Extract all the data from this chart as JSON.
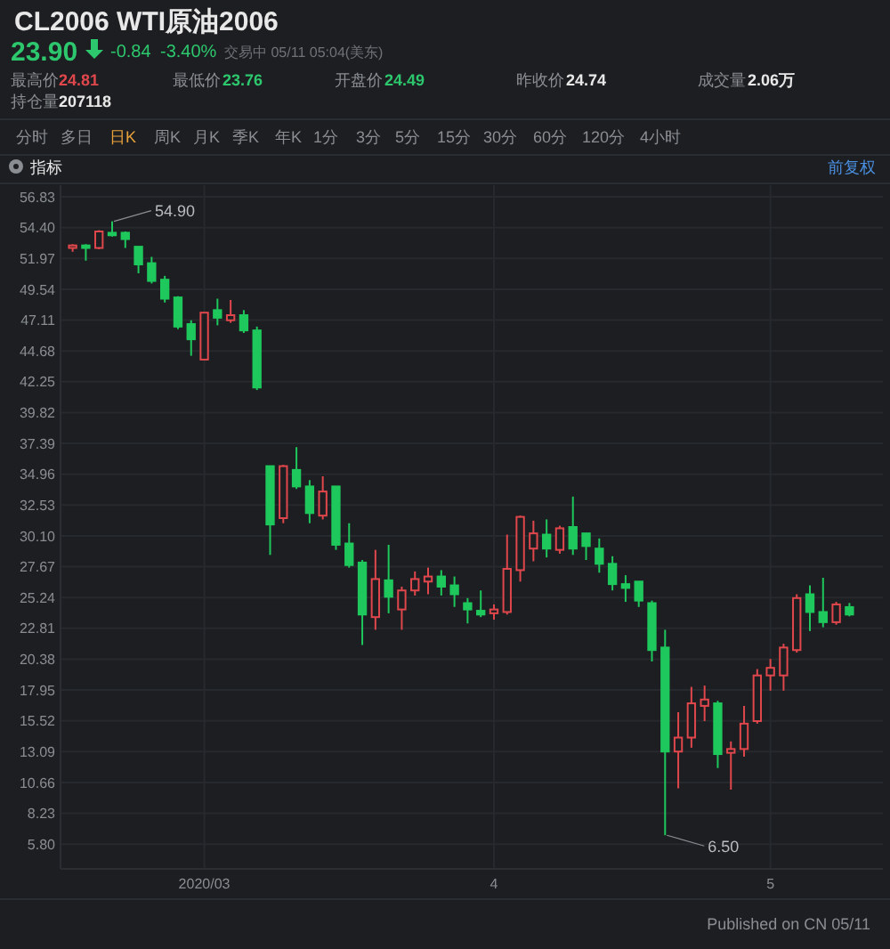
{
  "chart_data": {
    "type": "candlestick",
    "title": "CL2006 WTI原油2006",
    "subtitle": "23.90",
    "annotations": [
      "-0.84",
      "-3.40%",
      "交易中 05/11 05:04(美东)",
      "最高价",
      "24.81",
      "最低价",
      "23.76",
      "开盘价",
      "24.49",
      "昨收价",
      "24.74",
      "成交量",
      "2.06万",
      "持仓量",
      "207118",
      "分时",
      "多日",
      "日K",
      "周K",
      "月K",
      "季K",
      "年K",
      "1分",
      "3分",
      "5分",
      "15分",
      "30分",
      "60分",
      "120分",
      "4小时",
      "指标",
      "前复权",
      "Published on CN 05/11",
      "54.90",
      "6.50"
    ],
    "categories": [
      null,
      null,
      null,
      null,
      null,
      null,
      null,
      null,
      null,
      null,
      "2020/03",
      null,
      null,
      null,
      null,
      null,
      null,
      null,
      null,
      null,
      null,
      null,
      null,
      null,
      null,
      null,
      null,
      null,
      null,
      null,
      null,
      null,
      "4",
      null,
      null,
      null,
      null,
      null,
      null,
      null,
      null,
      null,
      null,
      null,
      null,
      null,
      null,
      null,
      null,
      null,
      null,
      null,
      null,
      "5",
      null,
      null,
      null,
      null,
      null,
      null
    ],
    "ohlc": [
      [
        52.8,
        53.1,
        52.5,
        53.0
      ],
      [
        53.0,
        53.1,
        51.8,
        52.8
      ],
      [
        52.8,
        54.2,
        52.7,
        54.1
      ],
      [
        54.0,
        54.9,
        53.7,
        53.8
      ],
      [
        54.0,
        54.1,
        52.8,
        53.5
      ],
      [
        52.9,
        52.9,
        50.8,
        51.5
      ],
      [
        51.6,
        52.1,
        50.0,
        50.2
      ],
      [
        50.3,
        50.6,
        48.5,
        48.8
      ],
      [
        48.9,
        49.0,
        46.4,
        46.6
      ],
      [
        46.8,
        47.1,
        44.3,
        45.6
      ],
      [
        44.0,
        47.7,
        44.0,
        47.7
      ],
      [
        47.9,
        48.8,
        46.7,
        47.3
      ],
      [
        47.1,
        48.7,
        46.9,
        47.5
      ],
      [
        47.5,
        47.9,
        46.1,
        46.3
      ],
      [
        46.3,
        46.6,
        41.6,
        41.8
      ],
      [
        35.6,
        35.6,
        28.6,
        31.0
      ],
      [
        31.5,
        35.7,
        31.1,
        35.6
      ],
      [
        35.3,
        37.1,
        33.8,
        34.0
      ],
      [
        34.0,
        34.5,
        31.1,
        31.9
      ],
      [
        31.7,
        34.8,
        31.4,
        33.6
      ],
      [
        34.0,
        34.0,
        29.0,
        29.4
      ],
      [
        29.5,
        31.1,
        27.6,
        27.8
      ],
      [
        28.0,
        28.2,
        21.5,
        23.9
      ],
      [
        23.7,
        29.0,
        22.7,
        26.7
      ],
      [
        26.6,
        29.4,
        24.0,
        25.3
      ],
      [
        24.3,
        26.1,
        22.7,
        25.8
      ],
      [
        25.8,
        27.3,
        25.4,
        26.7
      ],
      [
        26.5,
        27.6,
        25.5,
        26.9
      ],
      [
        26.9,
        27.4,
        25.4,
        26.1
      ],
      [
        26.2,
        26.9,
        24.5,
        25.5
      ],
      [
        24.8,
        25.2,
        23.2,
        24.3
      ],
      [
        24.2,
        25.8,
        23.7,
        23.9
      ],
      [
        24.0,
        24.7,
        23.5,
        24.3
      ],
      [
        24.1,
        30.2,
        23.9,
        27.5
      ],
      [
        27.4,
        31.7,
        26.5,
        31.6
      ],
      [
        29.1,
        31.3,
        28.1,
        30.3
      ],
      [
        30.2,
        31.4,
        28.4,
        29.1
      ],
      [
        29.0,
        30.9,
        28.7,
        30.7
      ],
      [
        30.8,
        33.2,
        28.6,
        29.1
      ],
      [
        30.3,
        30.3,
        28.2,
        29.3
      ],
      [
        29.1,
        29.9,
        27.2,
        27.9
      ],
      [
        27.9,
        28.5,
        25.8,
        26.3
      ],
      [
        26.3,
        27.0,
        24.9,
        26.0
      ],
      [
        26.5,
        26.5,
        24.5,
        25.0
      ],
      [
        24.8,
        25.0,
        20.2,
        21.1
      ],
      [
        21.3,
        22.7,
        6.5,
        13.1
      ],
      [
        13.1,
        16.2,
        10.2,
        14.2
      ],
      [
        14.2,
        18.2,
        13.4,
        16.9
      ],
      [
        16.7,
        18.3,
        15.5,
        17.2
      ],
      [
        16.9,
        17.1,
        11.8,
        12.9
      ],
      [
        13.0,
        13.9,
        10.1,
        13.3
      ],
      [
        13.3,
        16.7,
        12.7,
        15.3
      ],
      [
        15.5,
        19.6,
        15.3,
        19.1
      ],
      [
        19.1,
        20.4,
        17.9,
        19.7
      ],
      [
        19.1,
        21.6,
        17.9,
        21.3
      ],
      [
        21.1,
        25.5,
        20.9,
        25.2
      ],
      [
        25.5,
        26.2,
        22.6,
        24.1
      ],
      [
        24.1,
        26.8,
        22.9,
        23.3
      ],
      [
        23.3,
        24.9,
        23.1,
        24.7
      ],
      [
        24.49,
        24.81,
        23.76,
        23.9
      ]
    ],
    "colors": [
      "#e0474c",
      "#1ec85c",
      "#e0474c",
      "#1ec85c",
      "#1ec85c",
      "#1ec85c",
      "#1ec85c",
      "#1ec85c",
      "#1ec85c",
      "#1ec85c",
      "#e0474c",
      "#1ec85c",
      "#e0474c",
      "#1ec85c",
      "#1ec85c",
      "#1ec85c",
      "#e0474c",
      "#1ec85c",
      "#1ec85c",
      "#e0474c",
      "#1ec85c",
      "#1ec85c",
      "#1ec85c",
      "#e0474c",
      "#1ec85c",
      "#e0474c",
      "#e0474c",
      "#e0474c",
      "#1ec85c",
      "#1ec85c",
      "#1ec85c",
      "#1ec85c",
      "#e0474c",
      "#e0474c",
      "#e0474c",
      "#e0474c",
      "#1ec85c",
      "#e0474c",
      "#1ec85c",
      "#1ec85c",
      "#1ec85c",
      "#1ec85c",
      "#1ec85c",
      "#1ec85c",
      "#1ec85c",
      "#1ec85c",
      "#e0474c",
      "#e0474c",
      "#e0474c",
      "#1ec85c",
      "#e0474c",
      "#e0474c",
      "#e0474c",
      "#e0474c",
      "#e0474c",
      "#e0474c",
      "#1ec85c",
      "#1ec85c",
      "#e0474c",
      "#1ec85c"
    ],
    "ylim": [
      3.85,
      57.75
    ],
    "yticks": [
      56.83,
      {
        "value": 54.4,
        "label": "54.40"
      },
      51.97,
      49.54,
      47.11,
      44.68,
      42.25,
      39.82,
      37.39,
      34.96,
      32.53,
      {
        "value": 30.1,
        "label": "30.10"
      },
      27.67,
      25.24,
      22.81,
      20.38,
      17.95,
      15.52,
      13.09,
      10.66,
      8.23,
      {
        "value": 5.8,
        "label": "5.80"
      }
    ],
    "grid": true
  }
}
